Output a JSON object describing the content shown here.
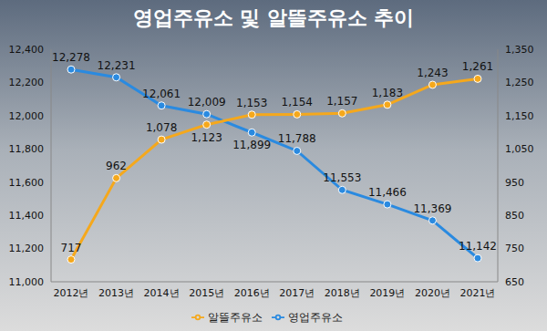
{
  "chart_data": {
    "type": "line",
    "title": "영업주유소 및 알뜰주유소 추이",
    "categories": [
      "2012년",
      "2013년",
      "2014년",
      "2015년",
      "2016년",
      "2017년",
      "2018년",
      "2019년",
      "2020년",
      "2021년"
    ],
    "series": [
      {
        "name": "영업주유소",
        "color": "#2a8ae0",
        "marker": "circle",
        "axis": "y",
        "values": [
          12278,
          12231,
          12061,
          12009,
          11899,
          11788,
          11553,
          11466,
          11369,
          11142
        ],
        "value_labels": [
          "12,278",
          "12,231",
          "12,061",
          "12,009",
          "11,899",
          "11,788",
          "11,553",
          "11,466",
          "11,369",
          "11,142"
        ]
      },
      {
        "name": "알뜰주유소",
        "color": "#f5a81c",
        "marker": "circle",
        "axis": "y2",
        "values": [
          717,
          962,
          1078,
          1123,
          1153,
          1154,
          1157,
          1183,
          1243,
          1261
        ],
        "value_labels": [
          "717",
          "962",
          "1,078",
          "1,123",
          "1,153",
          "1,154",
          "1,157",
          "1,183",
          "1,243",
          "1,261"
        ]
      }
    ],
    "ylim": [
      11000,
      12400
    ],
    "yticks": [
      {
        "value": 11000,
        "label": "11,000"
      },
      {
        "value": 11200,
        "label": "11,200"
      },
      {
        "value": 11400,
        "label": "11,400"
      },
      {
        "value": 11600,
        "label": "11,600"
      },
      {
        "value": 11800,
        "label": "11,800"
      },
      {
        "value": 12000,
        "label": "12,000"
      },
      {
        "value": 12200,
        "label": "12,200"
      },
      {
        "value": 12400,
        "label": "12,400"
      }
    ],
    "y2lim": [
      650,
      1350
    ],
    "y2ticks": [
      650,
      750,
      850,
      950,
      {
        "value": 1050,
        "label": "1,050"
      },
      {
        "value": 1150,
        "label": "1,150"
      },
      {
        "value": 1250,
        "label": "1,250"
      },
      {
        "value": 1350,
        "label": "1,350"
      }
    ],
    "data_labels": true,
    "legend": "bottom",
    "grid": false
  }
}
